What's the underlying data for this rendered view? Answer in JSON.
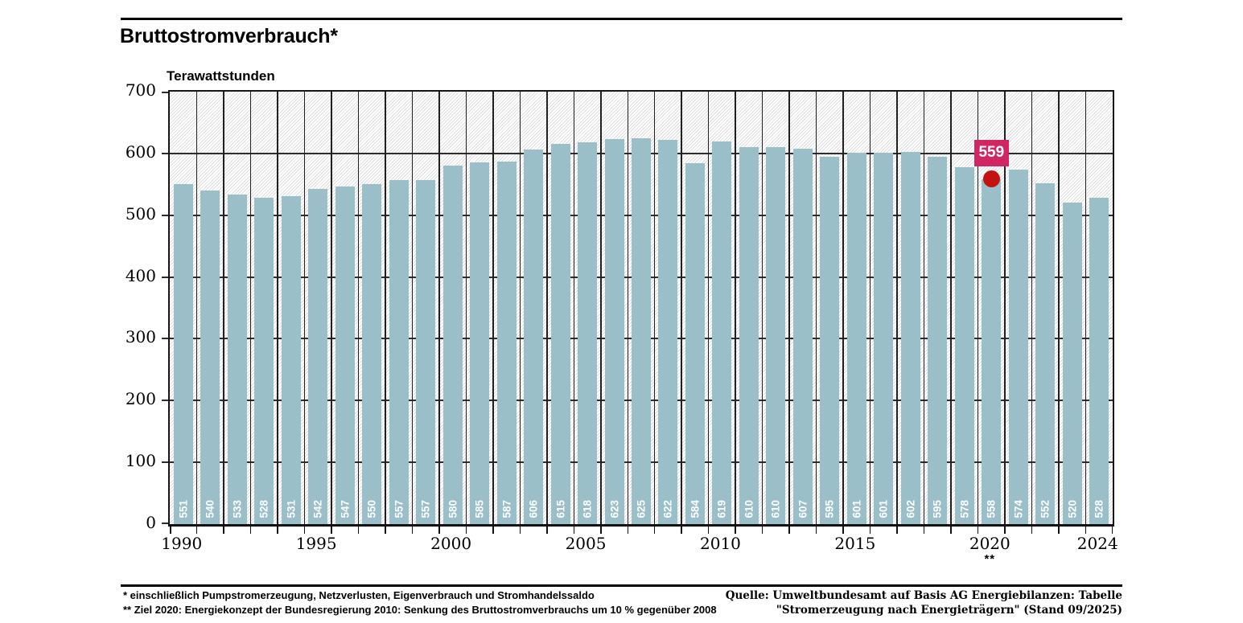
{
  "header": {
    "title": "Bruttostromverbrauch*"
  },
  "chart_data": {
    "type": "bar",
    "title": "Bruttostromverbrauch*",
    "ylabel": "Terawattstunden",
    "ylim": [
      0,
      700
    ],
    "y_ticks": [
      0,
      100,
      200,
      300,
      400,
      500,
      600,
      700
    ],
    "grid": "on",
    "categories": [
      1990,
      1991,
      1992,
      1993,
      1994,
      1995,
      1996,
      1997,
      1998,
      1999,
      2000,
      2001,
      2002,
      2003,
      2004,
      2005,
      2006,
      2007,
      2008,
      2009,
      2010,
      2011,
      2012,
      2013,
      2014,
      2015,
      2016,
      2017,
      2018,
      2019,
      2020,
      2021,
      2022,
      2023,
      2024
    ],
    "values": [
      551,
      540,
      533,
      528,
      531,
      542,
      547,
      550,
      557,
      557,
      580,
      585,
      587,
      606,
      615,
      618,
      623,
      625,
      622,
      584,
      619,
      610,
      610,
      607,
      595,
      601,
      601,
      602,
      595,
      578,
      558,
      574,
      552,
      520,
      528
    ],
    "x_tick_labels": [
      {
        "label": "1990",
        "year_index": 0
      },
      {
        "label": "1995",
        "year_index": 5
      },
      {
        "label": "2000",
        "year_index": 10
      },
      {
        "label": "2005",
        "year_index": 15
      },
      {
        "label": "2010",
        "year_index": 20
      },
      {
        "label": "2015",
        "year_index": 25
      },
      {
        "label": "2020",
        "year_index": 30
      },
      {
        "label": "2024",
        "year_index": 34
      }
    ],
    "x_axis_note": {
      "label": "**",
      "year_index": 30
    },
    "target_marker": {
      "year_index": 30,
      "value": 559,
      "label": "559"
    },
    "colors": {
      "bar": "#9abfc9",
      "bar_value_text": "#ffffff",
      "marker_dot": "#c41212",
      "marker_label_bg": "#d02664",
      "marker_label_text": "#ffffff",
      "axis": "#161616"
    }
  },
  "footnotes": {
    "line1": "* einschließlich Pumpstromerzeugung, Netzverlusten, Eigenverbrauch und Stromhandelssaldo",
    "line2": "** Ziel 2020: Energiekonzept der Bundesregierung 2010: Senkung des Bruttostromverbrauchs um 10 % gegenüber 2008"
  },
  "source": {
    "line1": "Quelle: Umweltbundesamt auf Basis AG Energiebilanzen: Tabelle",
    "line2": "\"Stromerzeugung nach Energieträgern\" (Stand 09/2025)"
  }
}
